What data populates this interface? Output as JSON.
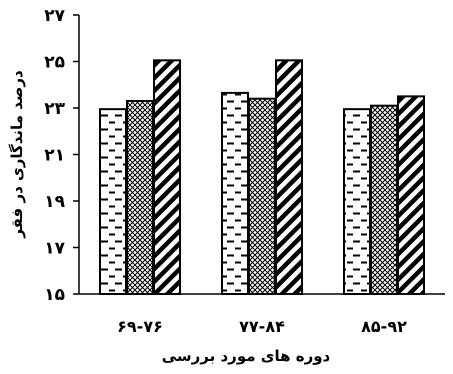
{
  "chart_data": {
    "type": "bar",
    "categories": [
      "۶۹-۷۶",
      "۷۷-۸۴",
      "۸۵-۹۲"
    ],
    "series": [
      {
        "pattern": "dashes",
        "values": [
          22.95,
          23.65,
          22.95
        ]
      },
      {
        "pattern": "crosshatch",
        "values": [
          23.3,
          23.4,
          23.1
        ]
      },
      {
        "pattern": "diagonal",
        "values": [
          25.05,
          25.05,
          23.5
        ]
      }
    ],
    "xlabel": "دوره های مورد بررسی",
    "ylabel": "درصد ماندگاری در فقر",
    "ylim": [
      15,
      27
    ],
    "yticks": [
      15,
      17,
      19,
      21,
      23,
      25,
      27
    ],
    "ytick_labels": [
      "۱۵",
      "۱۷",
      "۱۹",
      "۲۱",
      "۲۳",
      "۲۵",
      "۲۷"
    ],
    "grid": false,
    "legend": "none"
  }
}
